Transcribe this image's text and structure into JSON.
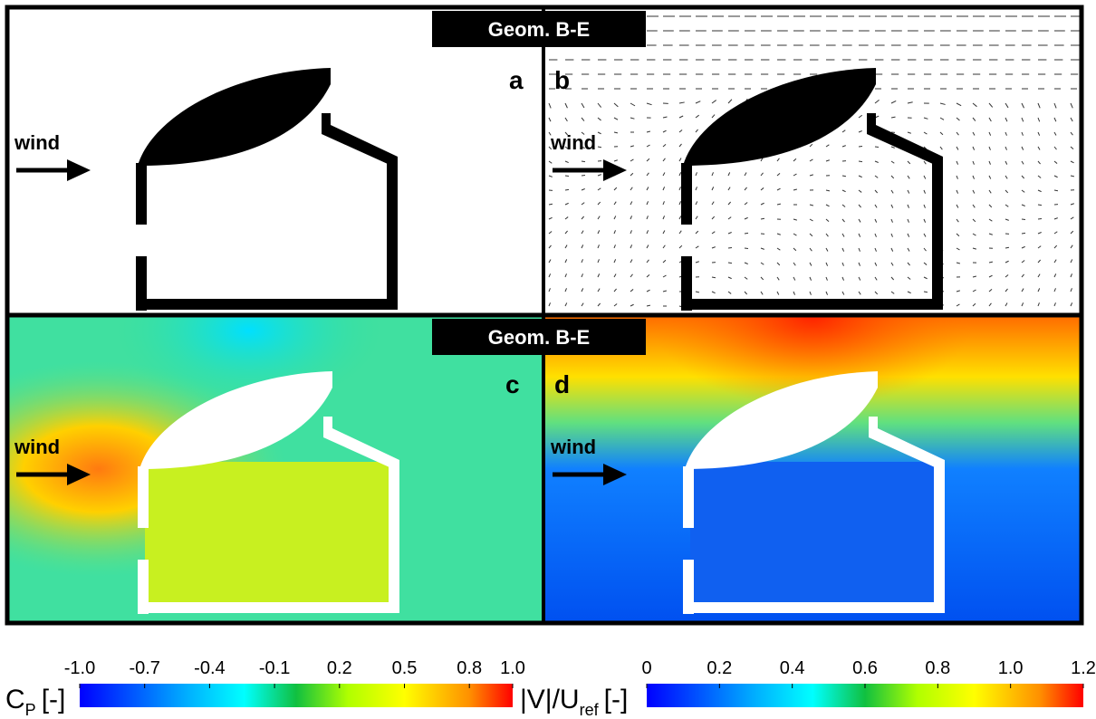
{
  "panel_titles": [
    "Geom. B-E",
    "Geom. B-E"
  ],
  "panels": [
    {
      "label": "a",
      "wind": "wind"
    },
    {
      "label": "b",
      "wind": "wind"
    },
    {
      "label": "c",
      "wind": "wind"
    },
    {
      "label": "d",
      "wind": "wind"
    }
  ],
  "colorbars": [
    {
      "symbol": "C",
      "subscript": "P",
      "unit": "[-]",
      "lim": [
        -1,
        1
      ],
      "ticks": [
        {
          "value": -1,
          "label": "-1.0"
        },
        -0.7,
        -0.4,
        -0.1,
        0.2,
        0.5,
        0.8,
        {
          "value": 1,
          "label": "1.0"
        }
      ]
    },
    {
      "symbol": "|V|/U",
      "subscript": "ref",
      "unit": "[-]",
      "lim": [
        0,
        1.2
      ],
      "ticks": [
        0,
        0.2,
        0.4,
        0.6,
        0.8,
        {
          "value": 1,
          "label": "1.0"
        },
        1.2
      ]
    }
  ]
}
